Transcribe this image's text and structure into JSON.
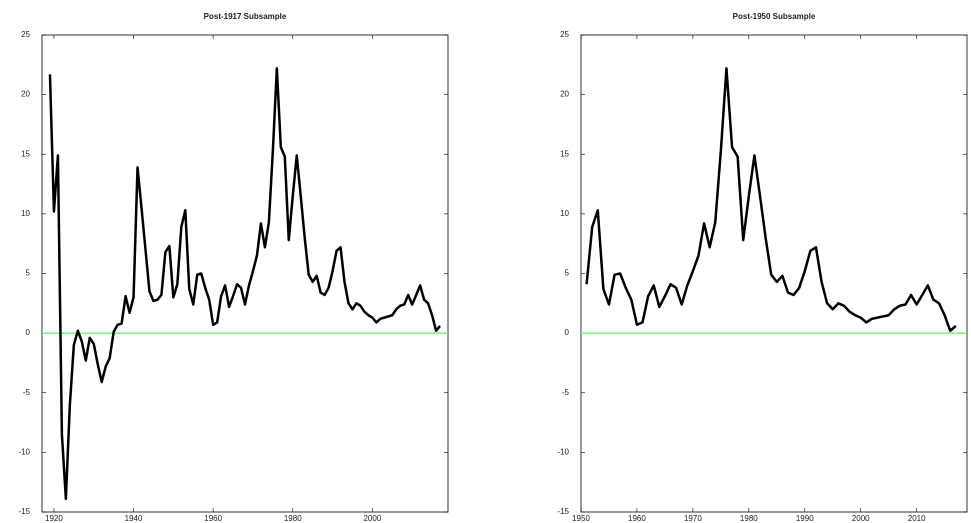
{
  "chart_data": [
    {
      "type": "line",
      "title": "Post-1917 Subsample",
      "x": [
        1919,
        1920,
        1921,
        1922,
        1923,
        1924,
        1925,
        1926,
        1927,
        1928,
        1929,
        1930,
        1931,
        1932,
        1933,
        1934,
        1935,
        1936,
        1937,
        1938,
        1939,
        1940,
        1941,
        1942,
        1943,
        1944,
        1945,
        1946,
        1947,
        1948,
        1949,
        1950,
        1951,
        1952,
        1953,
        1954,
        1955,
        1956,
        1957,
        1958,
        1959,
        1960,
        1961,
        1962,
        1963,
        1964,
        1965,
        1966,
        1967,
        1968,
        1969,
        1970,
        1971,
        1972,
        1973,
        1974,
        1975,
        1976,
        1977,
        1978,
        1979,
        1980,
        1981,
        1982,
        1983,
        1984,
        1985,
        1986,
        1987,
        1988,
        1989,
        1990,
        1991,
        1992,
        1993,
        1994,
        1995,
        1996,
        1997,
        1998,
        1999,
        2000,
        2001,
        2002,
        2003,
        2004,
        2005,
        2006,
        2007,
        2008,
        2009,
        2010,
        2011,
        2012,
        2013,
        2014,
        2015,
        2016,
        2017
      ],
      "values": [
        21.7,
        10.2,
        14.9,
        -8.5,
        -13.9,
        -6.0,
        -1.0,
        0.2,
        -0.7,
        -2.3,
        -0.4,
        -0.9,
        -2.6,
        -4.1,
        -2.8,
        -2.1,
        0.1,
        0.7,
        0.8,
        3.1,
        1.7,
        3.0,
        13.9,
        10.5,
        7.0,
        3.5,
        2.7,
        2.8,
        3.2,
        6.8,
        7.3,
        3.0,
        4.1,
        8.9,
        10.3,
        3.7,
        2.4,
        4.9,
        5.0,
        3.8,
        2.8,
        0.7,
        0.9,
        3.1,
        4.0,
        2.2,
        3.1,
        4.1,
        3.8,
        2.4,
        4.0,
        5.2,
        6.5,
        9.2,
        7.2,
        9.3,
        15.3,
        22.2,
        15.6,
        14.8,
        7.8,
        11.5,
        14.9,
        11.5,
        8.0,
        4.9,
        4.3,
        4.8,
        3.4,
        3.2,
        3.8,
        5.2,
        6.9,
        7.2,
        4.3,
        2.5,
        2.0,
        2.5,
        2.3,
        1.8,
        1.5,
        1.3,
        0.9,
        1.2,
        1.3,
        1.4,
        1.5,
        2.0,
        2.3,
        2.4,
        3.2,
        2.4,
        3.2,
        4.0,
        2.8,
        2.5,
        1.5,
        0.2,
        0.6
      ],
      "color": "#000000",
      "hline": 0,
      "hline_color": "#66ee66",
      "xlim": [
        1917,
        2019
      ],
      "xticks": [
        1920,
        1940,
        1960,
        1980,
        2000
      ],
      "ylim": [
        -15,
        25
      ],
      "yticks": [
        -15,
        -10,
        -5,
        0,
        5,
        10,
        15,
        20,
        25
      ]
    },
    {
      "type": "line",
      "title": "Post-1950 Subsample",
      "x": [
        1951,
        1952,
        1953,
        1954,
        1955,
        1956,
        1957,
        1958,
        1959,
        1960,
        1961,
        1962,
        1963,
        1964,
        1965,
        1966,
        1967,
        1968,
        1969,
        1970,
        1971,
        1972,
        1973,
        1974,
        1975,
        1976,
        1977,
        1978,
        1979,
        1980,
        1981,
        1982,
        1983,
        1984,
        1985,
        1986,
        1987,
        1988,
        1989,
        1990,
        1991,
        1992,
        1993,
        1994,
        1995,
        1996,
        1997,
        1998,
        1999,
        2000,
        2001,
        2002,
        2003,
        2004,
        2005,
        2006,
        2007,
        2008,
        2009,
        2010,
        2011,
        2012,
        2013,
        2014,
        2015,
        2016,
        2017
      ],
      "values": [
        4.1,
        8.9,
        10.3,
        3.7,
        2.4,
        4.9,
        5.0,
        3.8,
        2.8,
        0.7,
        0.9,
        3.1,
        4.0,
        2.2,
        3.1,
        4.1,
        3.8,
        2.4,
        4.0,
        5.2,
        6.5,
        9.2,
        7.2,
        9.3,
        15.3,
        22.2,
        15.6,
        14.8,
        7.8,
        11.5,
        14.9,
        11.5,
        8.0,
        4.9,
        4.3,
        4.8,
        3.4,
        3.2,
        3.8,
        5.2,
        6.9,
        7.2,
        4.3,
        2.5,
        2.0,
        2.5,
        2.3,
        1.8,
        1.5,
        1.3,
        0.9,
        1.2,
        1.3,
        1.4,
        1.5,
        2.0,
        2.3,
        2.4,
        3.2,
        2.4,
        3.2,
        4.0,
        2.8,
        2.5,
        1.5,
        0.2,
        0.6
      ],
      "color": "#000000",
      "hline": 0,
      "hline_color": "#66ee66",
      "xlim": [
        1950,
        2019
      ],
      "xticks": [
        1950,
        1960,
        1970,
        1980,
        1990,
        2000,
        2010
      ],
      "ylim": [
        -15,
        25
      ],
      "yticks": [
        -15,
        -10,
        -5,
        0,
        5,
        10,
        15,
        20,
        25
      ]
    }
  ]
}
